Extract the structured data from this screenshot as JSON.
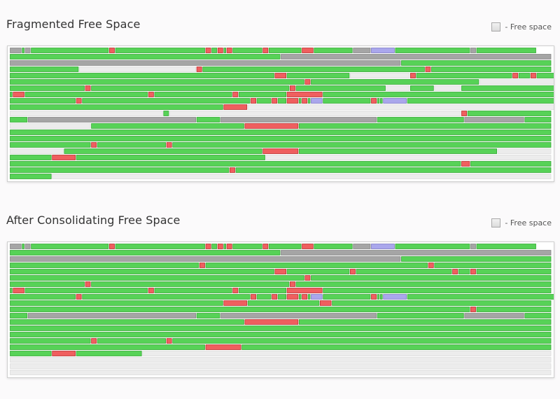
{
  "colors": {
    "used": "#57d257",
    "used_border": "#36a936",
    "unmovable": "#ef5f5f",
    "unmovable_border": "#bb3030",
    "system": "#a5a5a5",
    "system_border": "#878787",
    "metadata": "#aaa7ec",
    "metadata_border": "#7d79c5",
    "free": "#ececec",
    "free_border": "#dcdcdc"
  },
  "panels": [
    {
      "title": "Fragmented Free Space",
      "legend_label": "- Free space",
      "rows": [
        [
          "s4",
          "g1",
          "s2",
          "g26",
          "r2",
          "g30",
          "r2",
          "g2",
          "r2",
          "g1",
          "r2",
          "g10",
          "r2",
          "g11",
          "r4",
          "g13",
          "s6",
          "u8",
          "g25",
          "s2",
          "g20"
        ],
        [
          "g90",
          "s90"
        ],
        [
          "s130",
          "g50"
        ],
        [
          "g23",
          "f39",
          "r2",
          "g74",
          "r2",
          "g40"
        ],
        [
          "g88",
          "r4",
          "g21",
          "f20",
          "r2",
          "g32",
          "r2",
          "g4",
          "r2",
          "g25"
        ],
        [
          "g98",
          "r2",
          "g56",
          "f28",
          "r2",
          "g24"
        ],
        [
          "g25",
          "r2",
          "g66",
          "r2",
          "g30",
          "f8",
          "g8",
          "f9",
          "g40"
        ],
        [
          "g1",
          "r4",
          "g41",
          "r2",
          "g26",
          "r2",
          "g16",
          "r12",
          "g94"
        ],
        [
          "g22",
          "r2",
          "g56",
          "r2",
          "g5",
          "r2",
          "g3",
          "r4",
          "g1",
          "r2",
          "g1",
          "u4",
          "g16",
          "r2",
          "g1",
          "g1",
          "u8",
          "g60"
        ],
        [
          "g71",
          "r8",
          "f108"
        ],
        [
          "f51",
          "g2",
          "f97",
          "r2",
          "g28"
        ],
        [
          "g6",
          "s56",
          "g8",
          "s52",
          "g29",
          "s20",
          "g9"
        ],
        [
          "f27",
          "g51",
          "r18",
          "g84"
        ],
        [
          "g180"
        ],
        [
          "g180"
        ],
        [
          "g27",
          "r2",
          "g23",
          "r2",
          "g126"
        ],
        [
          "f18",
          "g66",
          "r12",
          "g66",
          "f18"
        ],
        [
          "g14",
          "r8",
          "g63",
          "f95"
        ],
        [
          "g150",
          "r3",
          "g27"
        ],
        [
          "g73",
          "r2",
          "g105"
        ],
        [
          "g14",
          "f166"
        ]
      ]
    },
    {
      "title": "After Consolidating Free Space",
      "legend_label": "- Free space",
      "rows": [
        [
          "s4",
          "g1",
          "s2",
          "g26",
          "r2",
          "g30",
          "r2",
          "g2",
          "r2",
          "g1",
          "r2",
          "g10",
          "r2",
          "g11",
          "r4",
          "g13",
          "s6",
          "u8",
          "g25",
          "s2",
          "g20"
        ],
        [
          "g90",
          "s90"
        ],
        [
          "s130",
          "g50"
        ],
        [
          "g63",
          "r2",
          "g74",
          "r2",
          "g39"
        ],
        [
          "g88",
          "r4",
          "g21",
          "r2",
          "g32",
          "r2",
          "g4",
          "r2",
          "g25"
        ],
        [
          "g98",
          "r2",
          "g80"
        ],
        [
          "g25",
          "r2",
          "g66",
          "r2",
          "g85"
        ],
        [
          "g1",
          "r4",
          "g41",
          "r2",
          "g26",
          "r2",
          "g16",
          "r12",
          "g76"
        ],
        [
          "g22",
          "r2",
          "g56",
          "r2",
          "g5",
          "r2",
          "g3",
          "r4",
          "g1",
          "r2",
          "g1",
          "u4",
          "g16",
          "r2",
          "g1",
          "g1",
          "u8",
          "g52"
        ],
        [
          "g71",
          "r8",
          "g24",
          "r4",
          "g73"
        ],
        [
          "g153",
          "r2",
          "g25"
        ],
        [
          "g6",
          "s56",
          "g8",
          "s52",
          "g29",
          "s20",
          "g9"
        ],
        [
          "g78",
          "r18",
          "g84"
        ],
        [
          "g180"
        ],
        [
          "g180"
        ],
        [
          "g27",
          "r2",
          "g23",
          "r2",
          "g126"
        ],
        [
          "g65",
          "r12",
          "g103"
        ],
        [
          "g14",
          "r8",
          "g22",
          "f136"
        ],
        [
          "f180"
        ],
        [
          "f180"
        ],
        [
          "f180"
        ]
      ]
    }
  ]
}
